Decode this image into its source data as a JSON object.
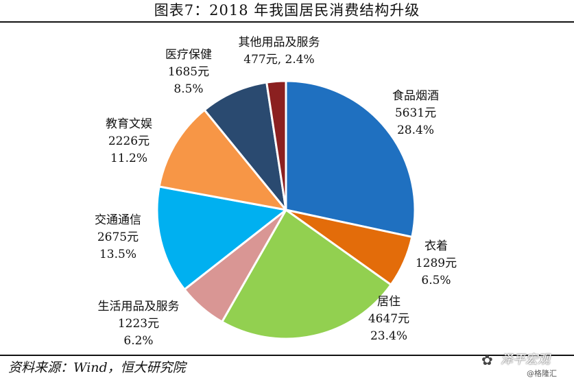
{
  "chart_data": {
    "type": "pie",
    "title": "图表7：2018 年我国居民消费结构升级",
    "unit": "元",
    "start_angle_deg": 0,
    "direction": "clockwise",
    "slices": [
      {
        "name": "食品烟酒",
        "value": 5631,
        "value_label": "5631元",
        "pct_label": "28.4%",
        "color": "#1f70c0"
      },
      {
        "name": "衣着",
        "value": 1289,
        "value_label": "1289元",
        "pct_label": "6.5%",
        "color": "#e36c0a"
      },
      {
        "name": "居住",
        "value": 4647,
        "value_label": "4647元",
        "pct_label": "23.4%",
        "color": "#92d050"
      },
      {
        "name": "生活用品及服务",
        "value": 1223,
        "value_label": "1223元",
        "pct_label": "6.2%",
        "color": "#d99694"
      },
      {
        "name": "交通通信",
        "value": 2675,
        "value_label": "2675元",
        "pct_label": "13.5%",
        "color": "#00b0f0"
      },
      {
        "name": "教育文娱",
        "value": 2226,
        "value_label": "2226元",
        "pct_label": "11.2%",
        "color": "#f79646"
      },
      {
        "name": "医疗保健",
        "value": 1685,
        "value_label": "1685元",
        "pct_label": "8.5%",
        "color": "#2a4a70"
      },
      {
        "name": "其他用品及服务",
        "value": 477,
        "value_label": "477元, 2.4%",
        "pct_label": "",
        "color": "#8b2020"
      }
    ]
  },
  "footer": {
    "source": "资料来源：Wind，恒大研究院"
  },
  "watermark": {
    "logo": "✿",
    "name": "泽平宏观",
    "handle": "@格隆汇"
  }
}
